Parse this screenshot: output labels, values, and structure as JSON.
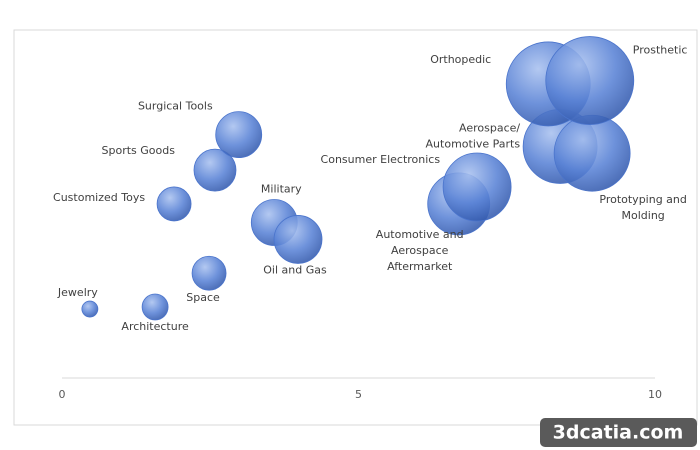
{
  "chart_data": {
    "type": "bubble",
    "points": [
      {
        "label": "Jewelry",
        "x": 0.47,
        "y": 2.04,
        "size": 8
      },
      {
        "label": "Architecture",
        "x": 1.57,
        "y": 2.1,
        "size": 13
      },
      {
        "label": "Space",
        "x": 2.48,
        "y": 3.1,
        "size": 17
      },
      {
        "label": "Customized Toys",
        "x": 1.89,
        "y": 5.15,
        "size": 17
      },
      {
        "label": "Sports Goods",
        "x": 2.58,
        "y": 6.15,
        "size": 21
      },
      {
        "label": "Surgical Tools",
        "x": 2.98,
        "y": 7.2,
        "size": 23
      },
      {
        "label": "Military",
        "x": 3.58,
        "y": 4.6,
        "size": 23
      },
      {
        "label": "Oil and Gas",
        "x": 3.98,
        "y": 4.1,
        "size": 24
      },
      {
        "label": "Automotive and\nAerospace\nAftermarket",
        "x": 6.69,
        "y": 5.15,
        "size": 31
      },
      {
        "label": "Consumer Electronics",
        "x": 7.0,
        "y": 5.65,
        "size": 34
      },
      {
        "label": "Aerospace/\nAutomotive Parts",
        "x": 8.4,
        "y": 6.85,
        "size": 37
      },
      {
        "label": "Prototyping and\nMolding",
        "x": 8.94,
        "y": 6.65,
        "size": 38
      },
      {
        "label": "Orthopedic",
        "x": 8.2,
        "y": 8.7,
        "size": 42
      },
      {
        "label": "Prosthetic",
        "x": 8.9,
        "y": 8.8,
        "size": 44
      }
    ],
    "color": "#4a74cc",
    "xlim": [
      0,
      10
    ],
    "xticks": [
      0,
      5,
      10
    ],
    "ylim": [
      0,
      10
    ],
    "watermark": "3dcatia.com"
  }
}
